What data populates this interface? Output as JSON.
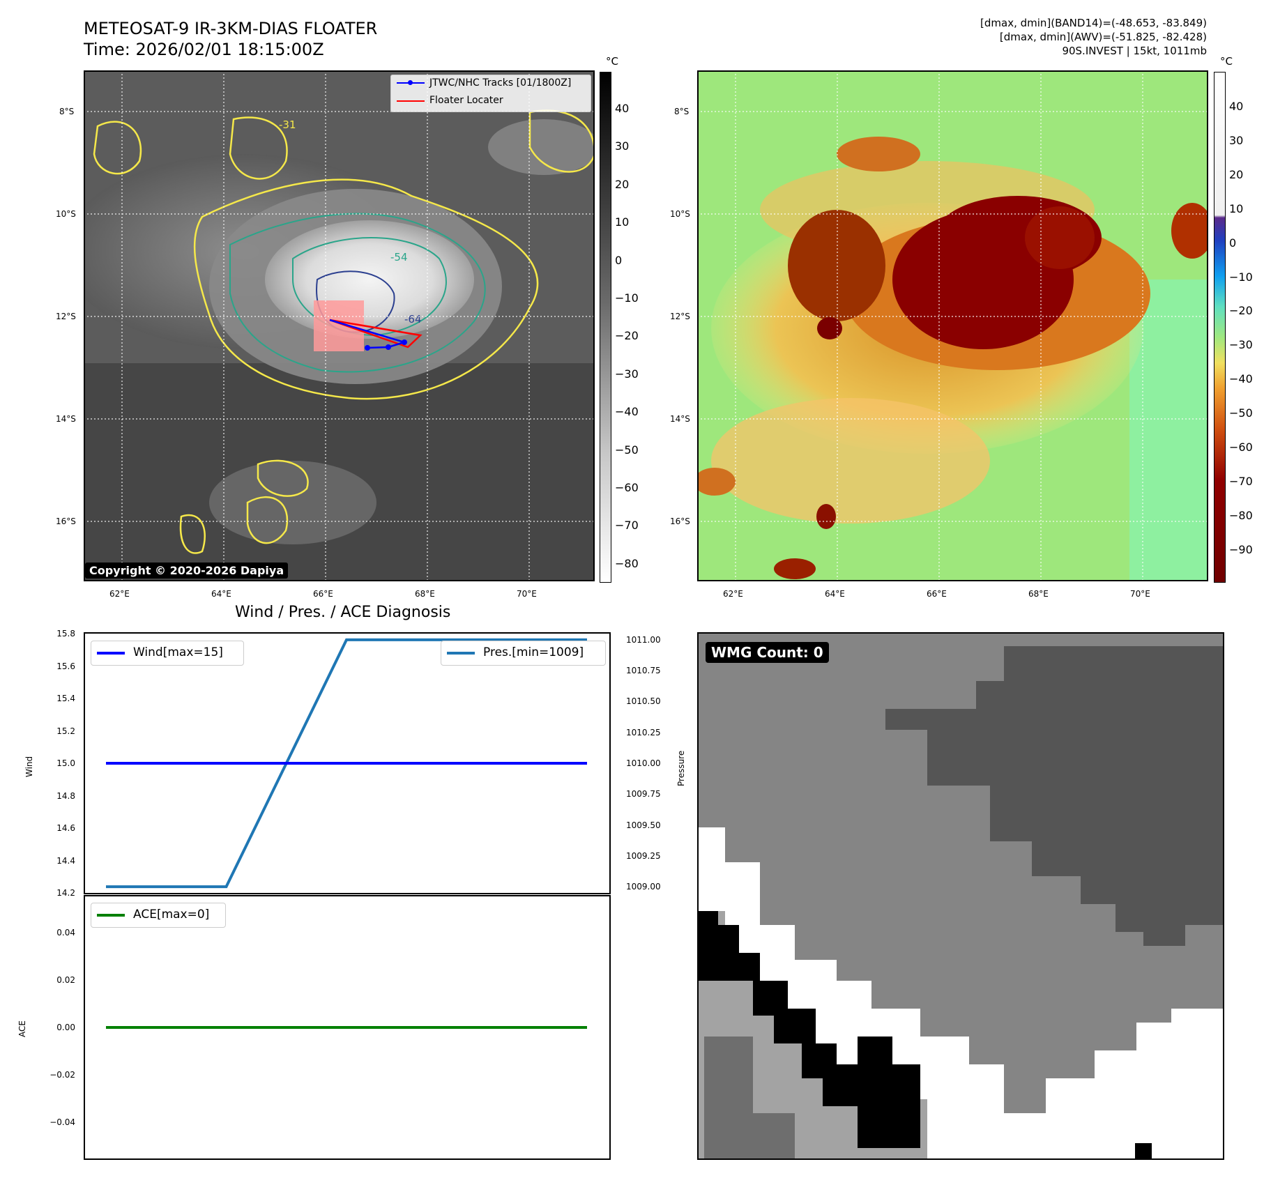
{
  "header": {
    "title_line1": "METEOSAT-9 IR-3KM-DIAS FLOATER",
    "title_line2": "Time: 2026/02/01 18:15:00Z",
    "info_line1": "[dmax, dmin](BAND14)=(-48.653, -83.849)",
    "info_line2": "[dmax, dmin](AWV)=(-51.825, -82.428)",
    "info_line3": "90S.INVEST | 15kt, 1011mb"
  },
  "maps": {
    "lat_labels": [
      "8°S",
      "10°S",
      "12°S",
      "14°S",
      "16°S"
    ],
    "lon_labels": [
      "62°E",
      "64°E",
      "66°E",
      "68°E",
      "70°E"
    ],
    "unit_label": "°C",
    "ir_colorbar_ticks": [
      "40",
      "30",
      "20",
      "10",
      "0",
      "−10",
      "−20",
      "−30",
      "−40",
      "−50",
      "−60",
      "−70",
      "−80"
    ],
    "awv_colorbar_ticks": [
      "40",
      "30",
      "20",
      "10",
      "0",
      "−10",
      "−20",
      "−30",
      "−40",
      "−50",
      "−60",
      "−70",
      "−80",
      "−90"
    ],
    "contour_labels": [
      "-31",
      "-54",
      "-64"
    ],
    "legend": {
      "tracks": "JTWC/NHC Tracks [01/1800Z]",
      "locater": "Floater Locater"
    },
    "copyright": "Copyright © 2020-2026 Dapiya",
    "colors": {
      "track": "#0000ff",
      "locater": "#ff0000",
      "contour_31": "#f5e84a",
      "contour_54": "#2aa58a",
      "contour_64": "#2b3f8f"
    }
  },
  "diagnosis": {
    "title": "Wind / Pres. / ACE Diagnosis",
    "wind_ylabel": "Wind",
    "pres_ylabel": "Pressure",
    "ace_ylabel": "ACE",
    "wind_ticks": [
      "15.8",
      "15.6",
      "15.4",
      "15.2",
      "15.0",
      "14.8",
      "14.6",
      "14.4",
      "14.2"
    ],
    "pres_ticks": [
      "1011.00",
      "1010.75",
      "1010.50",
      "1010.25",
      "1010.00",
      "1009.75",
      "1009.50",
      "1009.25",
      "1009.00"
    ],
    "ace_ticks": [
      "0.04",
      "0.02",
      "0.00",
      "−0.02",
      "−0.04"
    ],
    "wind_legend": "Wind[max=15]",
    "pres_legend": "Pres.[min=1009]",
    "ace_legend": "ACE[max=0]",
    "wmg_label": "WMG Count: 0"
  },
  "chart_data": [
    {
      "type": "line",
      "title": "Wind / Pres. / ACE Diagnosis",
      "ylabel": "Wind",
      "ylim": [
        14.2,
        15.8
      ],
      "series": [
        {
          "name": "Wind[max=15]",
          "color": "#0000ff",
          "x": [
            0,
            1,
            2,
            3,
            4
          ],
          "values": [
            15,
            15,
            15,
            15,
            15
          ]
        }
      ]
    },
    {
      "type": "line",
      "ylabel": "Pressure",
      "ylim": [
        1008.95,
        1011.05
      ],
      "series": [
        {
          "name": "Pres.[min=1009]",
          "color": "#1f77b4",
          "x": [
            0,
            1,
            2,
            3,
            4
          ],
          "values": [
            1009,
            1009,
            1011,
            1011,
            1011
          ]
        }
      ]
    },
    {
      "type": "line",
      "ylabel": "ACE",
      "ylim": [
        -0.055,
        0.055
      ],
      "series": [
        {
          "name": "ACE[max=0]",
          "color": "#008000",
          "x": [
            0,
            1,
            2,
            3,
            4
          ],
          "values": [
            0,
            0,
            0,
            0,
            0
          ]
        }
      ]
    }
  ]
}
